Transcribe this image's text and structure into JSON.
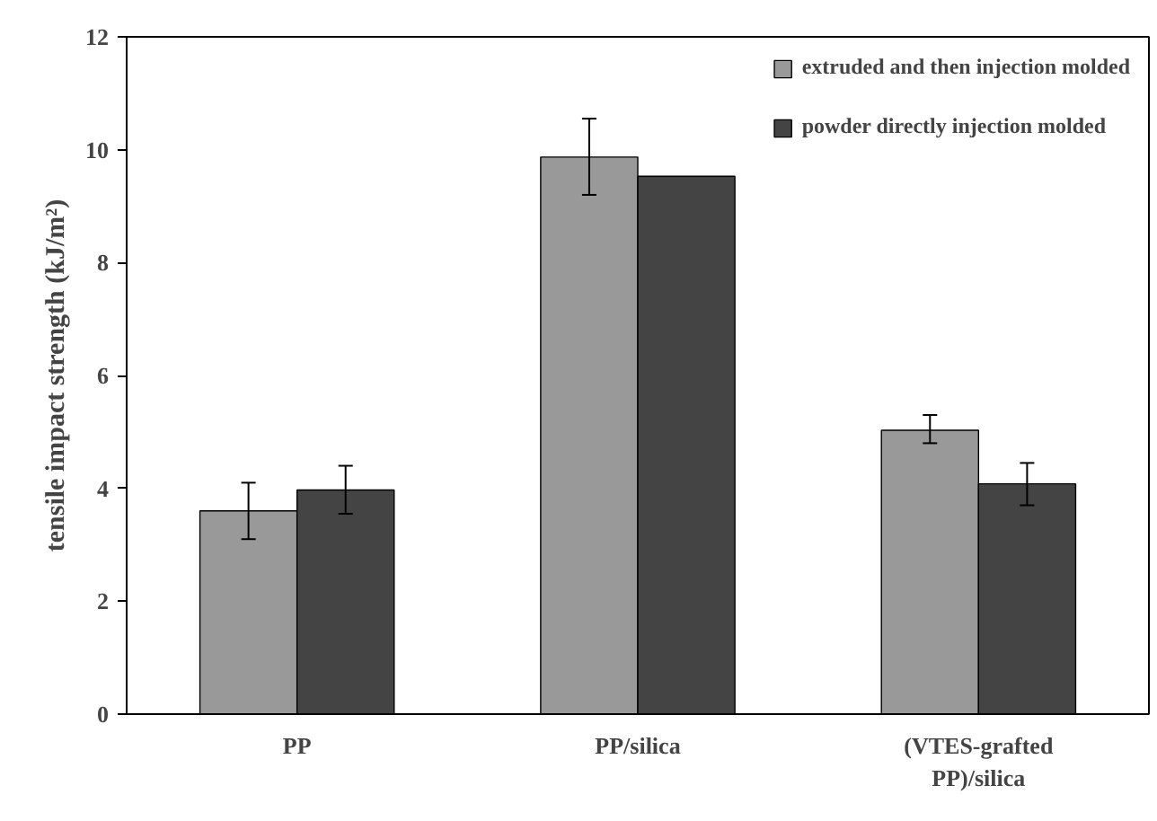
{
  "chart_data": {
    "type": "bar",
    "ylabel": "tensile impact strength (kJ/m²)",
    "categories": [
      "PP",
      "PP/silica",
      "(VTES-grafted\nPP)/silica"
    ],
    "series": [
      {
        "name": "extruded and then injection molded",
        "color": "#999999",
        "values": [
          3.6,
          9.87,
          5.03
        ],
        "errors": [
          [
            3.1,
            4.1
          ],
          [
            9.2,
            10.55
          ],
          [
            4.8,
            5.3
          ]
        ]
      },
      {
        "name": "powder directly injection molded",
        "color": "#444444",
        "values": [
          3.97,
          9.53,
          4.08
        ],
        "errors": [
          [
            3.55,
            4.4
          ],
          null,
          [
            3.7,
            4.45
          ]
        ]
      }
    ],
    "ylim": [
      0,
      12
    ],
    "yticks": [
      0,
      2,
      4,
      6,
      8,
      10,
      12
    ],
    "grid": false,
    "legend": "top right"
  }
}
